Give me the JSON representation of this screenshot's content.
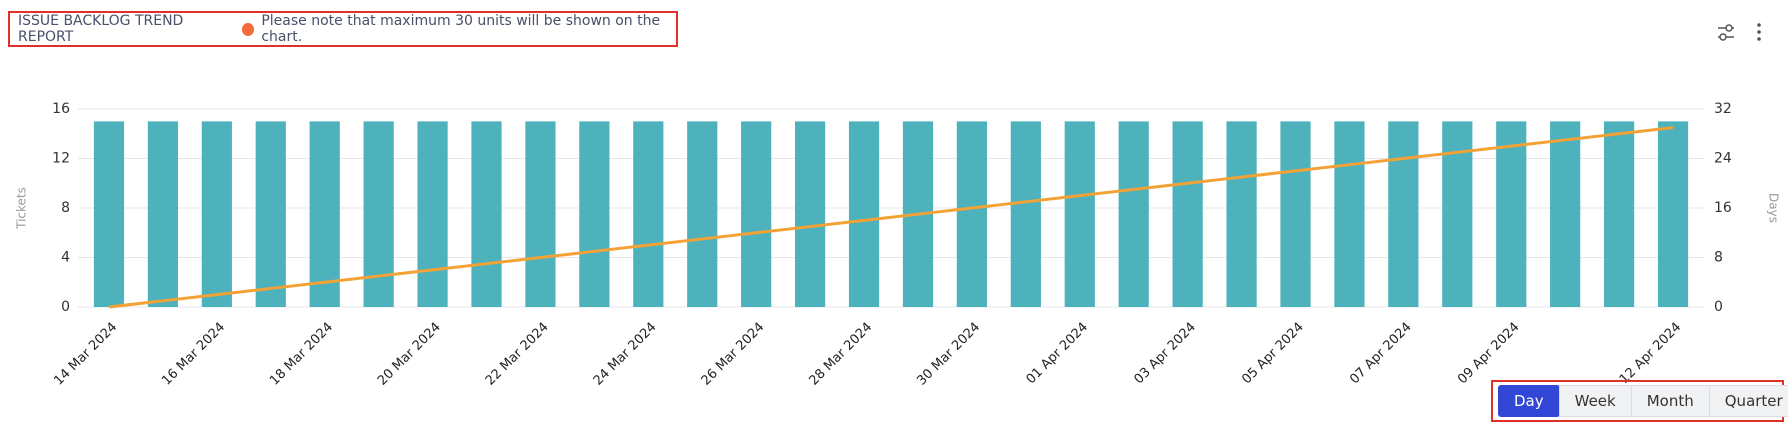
{
  "header": {
    "title": "ISSUE BACKLOG TREND REPORT",
    "note": "Please note that maximum 30 units will be shown on the chart."
  },
  "chart_data": {
    "type": "bar",
    "categories": [
      "14 Mar 2024",
      null,
      "16 Mar 2024",
      null,
      "18 Mar 2024",
      null,
      "20 Mar 2024",
      null,
      "22 Mar 2024",
      null,
      "24 Mar 2024",
      null,
      "26 Mar 2024",
      null,
      "28 Mar 2024",
      null,
      "30 Mar 2024",
      null,
      "01 Apr 2024",
      null,
      "03 Apr 2024",
      null,
      "05 Apr 2024",
      null,
      "07 Apr 2024",
      null,
      "09 Apr 2024",
      null,
      null,
      "12 Apr 2024"
    ],
    "series": [
      {
        "type": "bar",
        "color": "#4db2bc",
        "values": [
          15,
          15,
          15,
          15,
          15,
          15,
          15,
          15,
          15,
          15,
          15,
          15,
          15,
          15,
          15,
          15,
          15,
          15,
          15,
          15,
          15,
          15,
          15,
          15,
          15,
          15,
          15,
          15,
          15,
          15
        ]
      },
      {
        "type": "line",
        "axis": "y2",
        "color": "#f4a136",
        "values": [
          0,
          1,
          2,
          3,
          4,
          5,
          6,
          7,
          8,
          9,
          10,
          11,
          12,
          13,
          14,
          15,
          16,
          17,
          18,
          19,
          20,
          21,
          22,
          23,
          24,
          25,
          26,
          27,
          28,
          29
        ]
      }
    ],
    "y_label": "Tickets",
    "y2_label": "Days",
    "ylim": [
      0,
      16
    ],
    "yticks": [
      0,
      4,
      8,
      12,
      16
    ],
    "y2lim": [
      0,
      32
    ],
    "y2ticks": [
      0,
      8,
      16,
      24,
      32
    ],
    "grid": true
  },
  "controls": {
    "buttons": [
      "Day",
      "Week",
      "Month",
      "Quarter"
    ],
    "active_button": 0
  }
}
